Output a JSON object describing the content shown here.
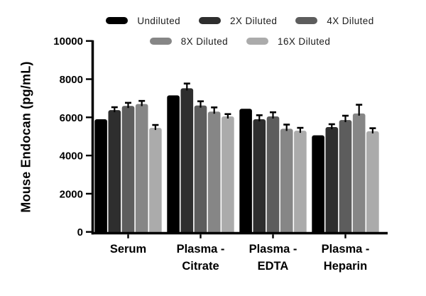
{
  "chart_data": {
    "type": "bar",
    "title": "",
    "xlabel": "",
    "ylabel": "Mouse Endocan (pg/mL)",
    "ylim": [
      0,
      10000
    ],
    "yticks": [
      0,
      2000,
      4000,
      6000,
      8000,
      10000
    ],
    "grid": false,
    "legend_position": "top",
    "axis_color": "#000000",
    "error_bar_color": "#000000",
    "background_color": "#ffffff",
    "categories": [
      "Serum",
      "Plasma - Citrate",
      "Plasma - EDTA",
      "Plasma - Heparin"
    ],
    "category_label_lines": [
      [
        "Serum"
      ],
      [
        "Plasma -",
        "Citrate"
      ],
      [
        "Plasma -",
        "EDTA"
      ],
      [
        "Plasma -",
        "Heparin"
      ]
    ],
    "series": [
      {
        "name": "Undiluted",
        "color": "#000000",
        "values": [
          5900,
          7150,
          6450,
          5060
        ],
        "errors": [
          0,
          0,
          0,
          0
        ]
      },
      {
        "name": "2X Diluted",
        "color": "#2e2e2e",
        "values": [
          6380,
          7520,
          5900,
          5490
        ],
        "errors": [
          150,
          250,
          210,
          150
        ]
      },
      {
        "name": "4X Diluted",
        "color": "#5d5d5d",
        "values": [
          6600,
          6620,
          6050,
          5860
        ],
        "errors": [
          160,
          220,
          215,
          225
        ]
      },
      {
        "name": "8X Diluted",
        "color": "#868686",
        "values": [
          6700,
          6300,
          5400,
          6200
        ],
        "errors": [
          160,
          220,
          220,
          460
        ]
      },
      {
        "name": "16X Diluted",
        "color": "#ababab",
        "values": [
          5450,
          6050,
          5300,
          5270
        ],
        "errors": [
          150,
          120,
          150,
          160
        ]
      }
    ],
    "legend_rows": [
      [
        0,
        1,
        2
      ],
      [
        3,
        4
      ]
    ]
  }
}
